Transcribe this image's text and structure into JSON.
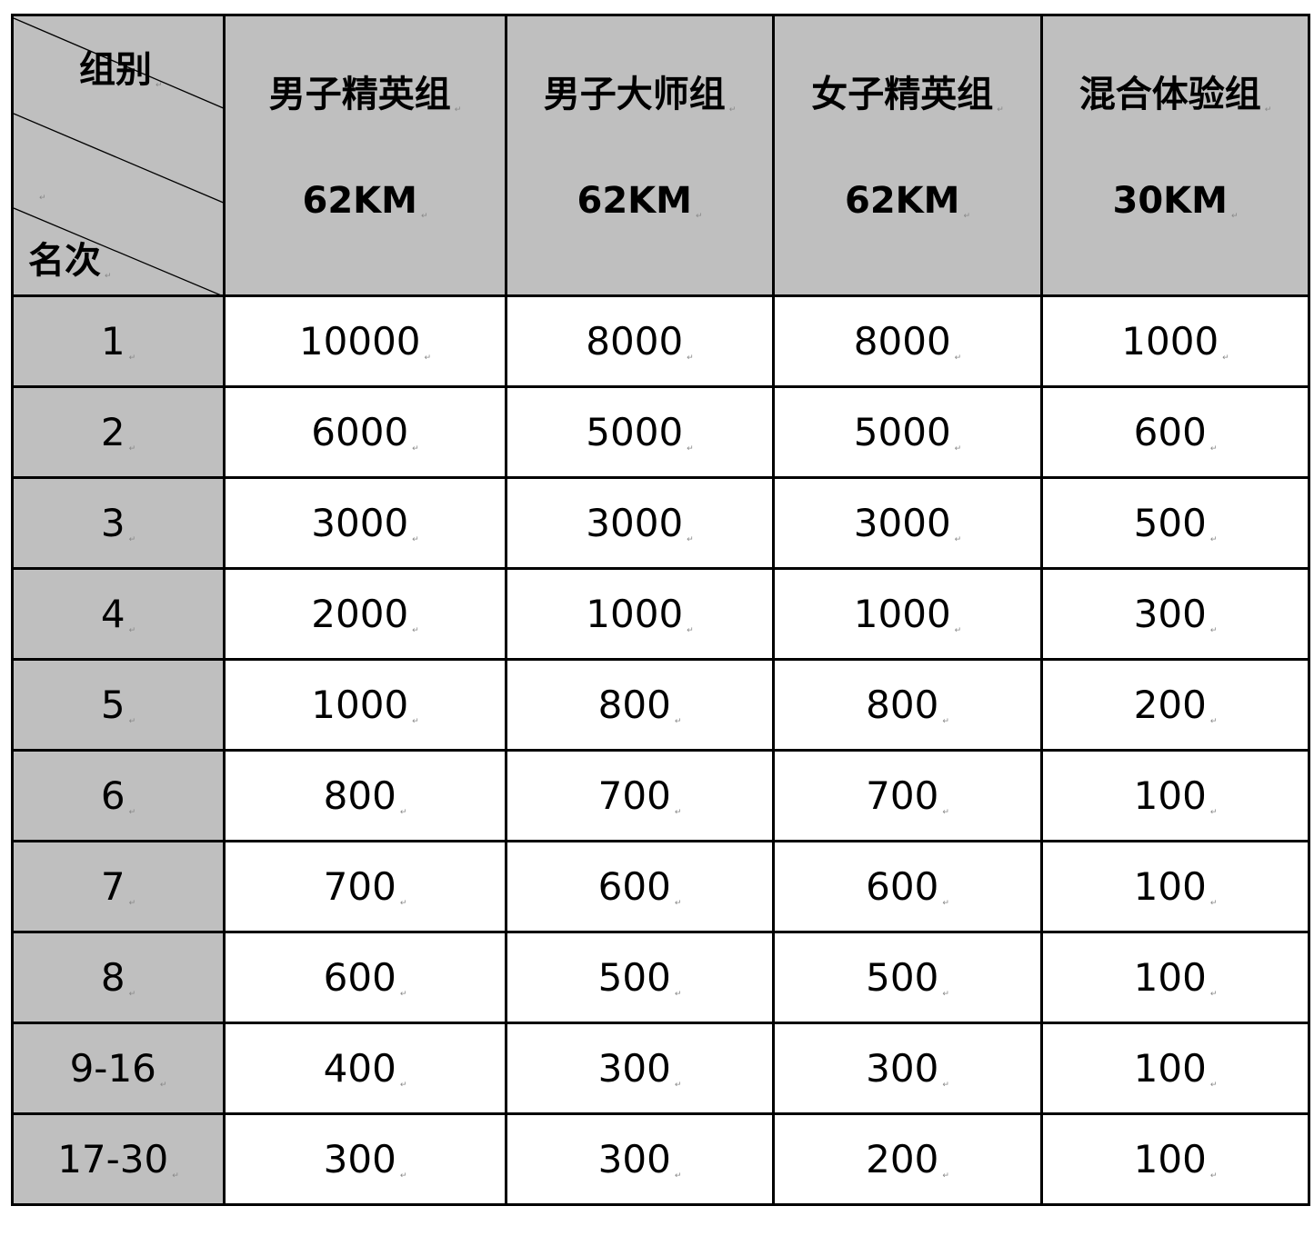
{
  "table": {
    "corner": {
      "top_label": "组别",
      "bottom_label": "名次"
    },
    "columns": [
      {
        "name": "男子精英组",
        "distance": "62KM"
      },
      {
        "name": "男子大师组",
        "distance": "62KM"
      },
      {
        "name": "女子精英组",
        "distance": "62KM"
      },
      {
        "name": "混合体验组",
        "distance": "30KM"
      }
    ],
    "rows": [
      {
        "rank": "1",
        "values": [
          "10000",
          "8000",
          "8000",
          "1000"
        ]
      },
      {
        "rank": "2",
        "values": [
          "6000",
          "5000",
          "5000",
          "600"
        ]
      },
      {
        "rank": "3",
        "values": [
          "3000",
          "3000",
          "3000",
          "500"
        ]
      },
      {
        "rank": "4",
        "values": [
          "2000",
          "1000",
          "1000",
          "300"
        ]
      },
      {
        "rank": "5",
        "values": [
          "1000",
          "800",
          "800",
          "200"
        ]
      },
      {
        "rank": "6",
        "values": [
          "800",
          "700",
          "700",
          "100"
        ]
      },
      {
        "rank": "7",
        "values": [
          "700",
          "600",
          "600",
          "100"
        ]
      },
      {
        "rank": "8",
        "values": [
          "600",
          "500",
          "500",
          "100"
        ]
      },
      {
        "rank": "9-16",
        "values": [
          "400",
          "300",
          "300",
          "100"
        ]
      },
      {
        "rank": "17-30",
        "values": [
          "300",
          "300",
          "200",
          "100"
        ]
      }
    ]
  },
  "colors": {
    "header_bg": "#bfbfbf",
    "border": "#000000"
  }
}
